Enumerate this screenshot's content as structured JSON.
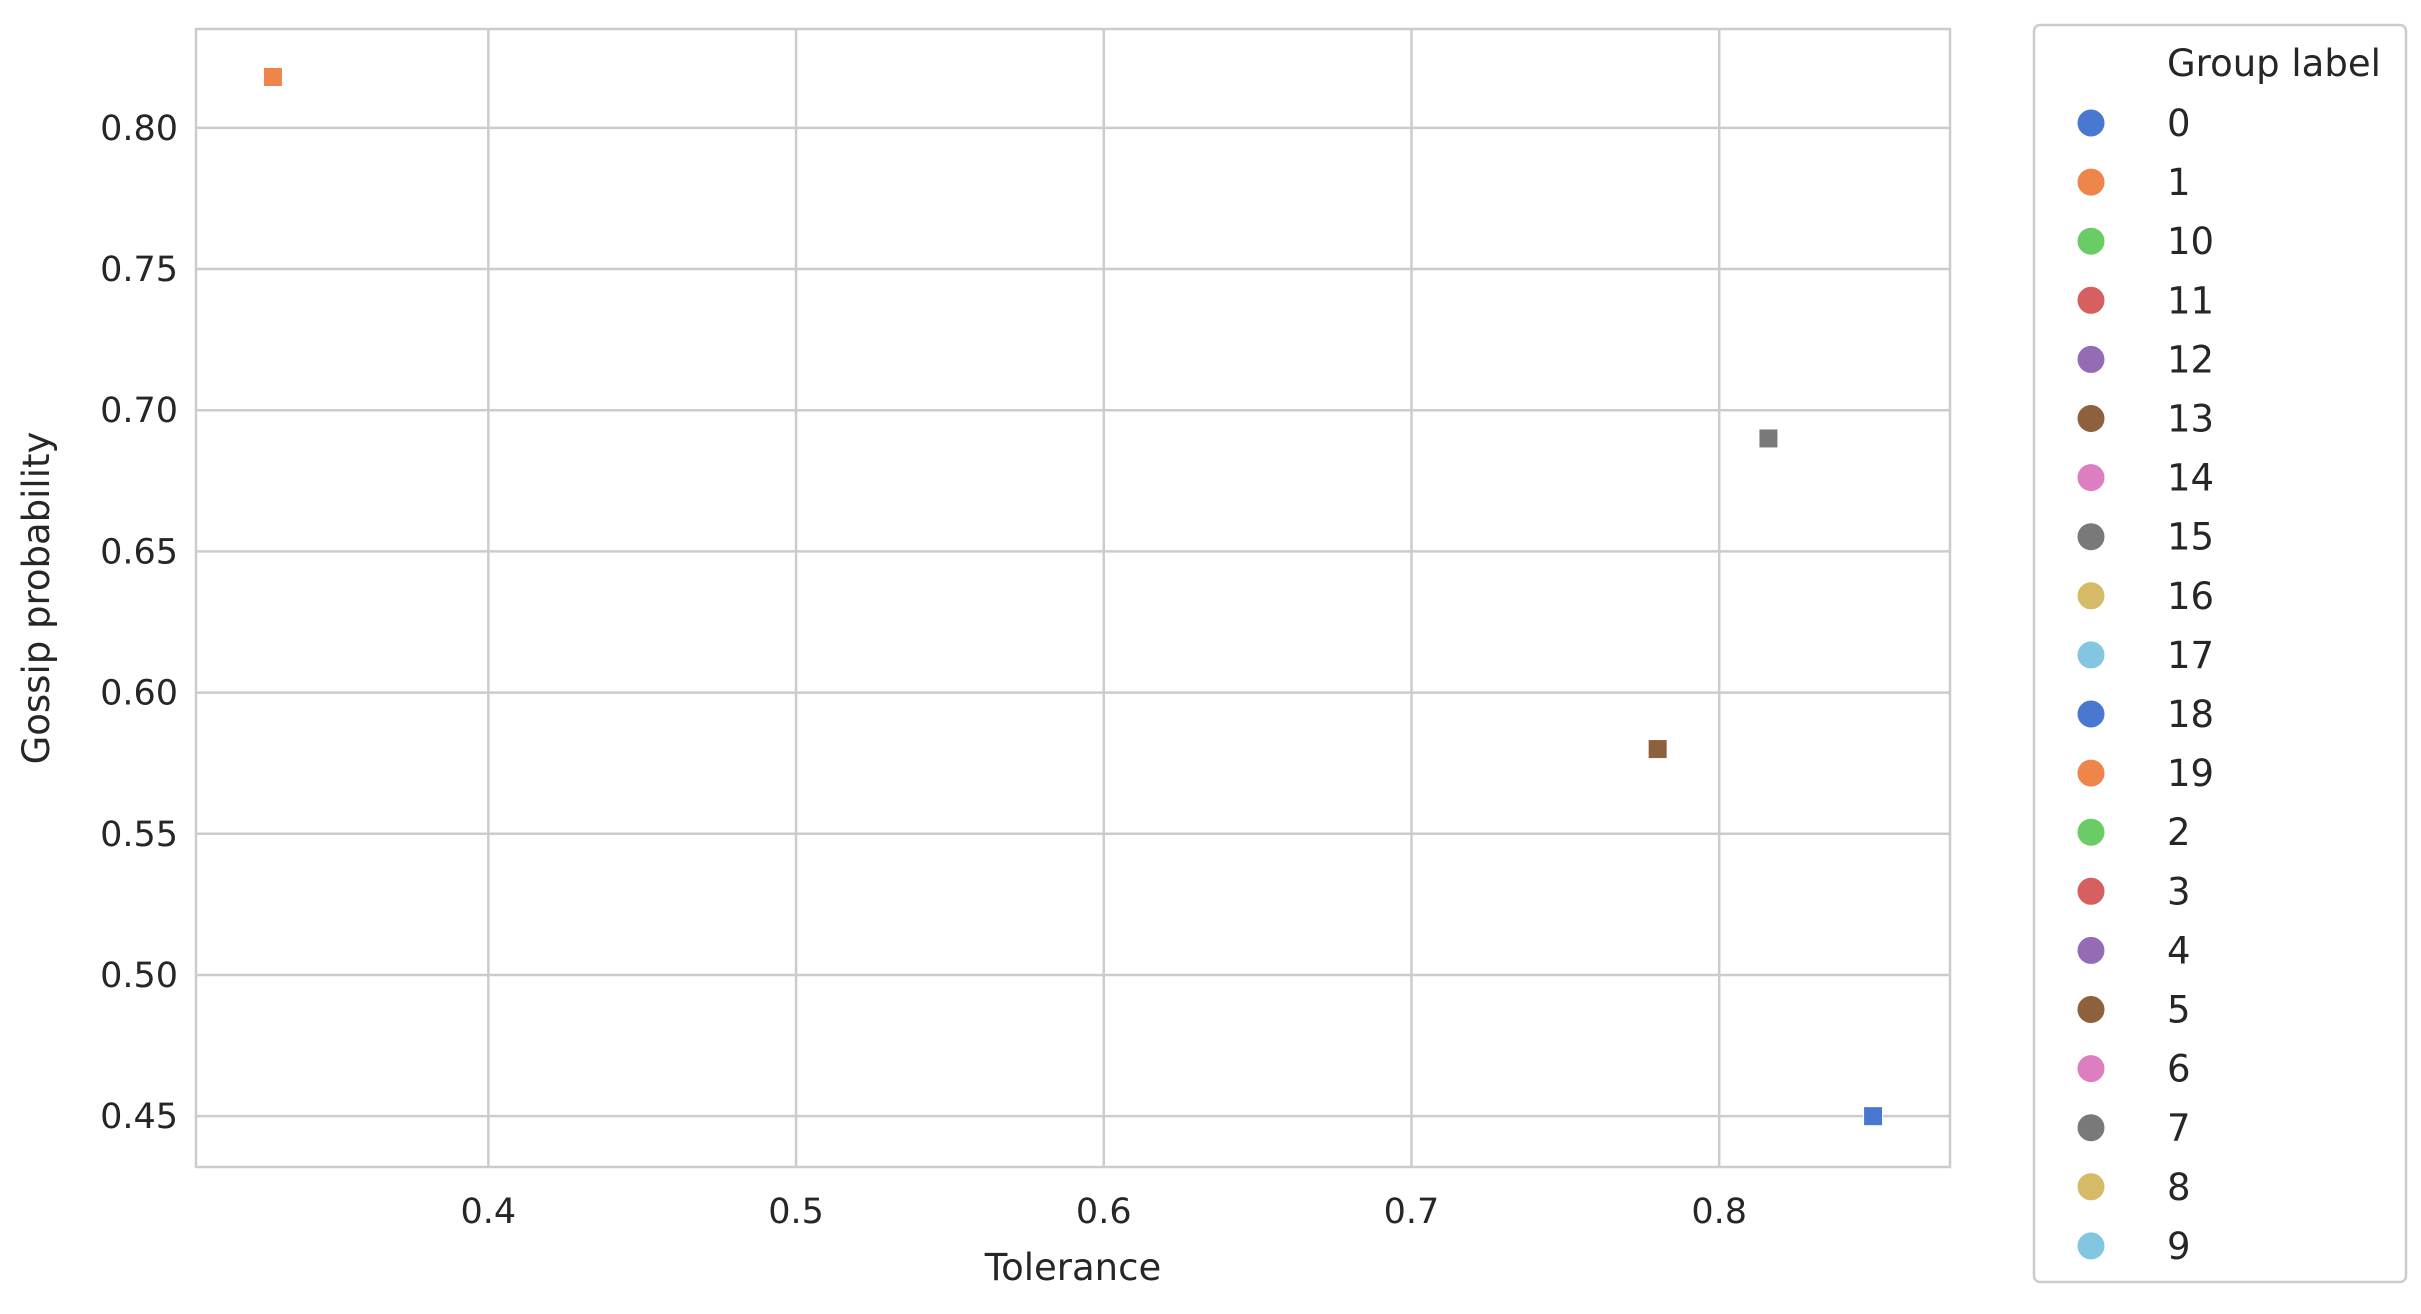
{
  "chart_data": {
    "type": "scatter",
    "xlabel": "Tolerance",
    "ylabel": "Gossip probability",
    "xlim": [
      0.305,
      0.875
    ],
    "ylim": [
      0.432,
      0.835
    ],
    "xticks": [
      0.4,
      0.5,
      0.6,
      0.7,
      0.8
    ],
    "xtick_labels": [
      "0.4",
      "0.5",
      "0.6",
      "0.7",
      "0.8"
    ],
    "yticks": [
      0.45,
      0.5,
      0.55,
      0.6,
      0.65,
      0.7,
      0.75,
      0.8
    ],
    "ytick_labels": [
      "0.45",
      "0.50",
      "0.55",
      "0.60",
      "0.65",
      "0.70",
      "0.75",
      "0.80"
    ],
    "grid": true,
    "marker": "square",
    "legend": {
      "title": "Group label",
      "placement": "outside-right",
      "entries": [
        {
          "label": "0",
          "color": "#4878d0"
        },
        {
          "label": "1",
          "color": "#ee854a"
        },
        {
          "label": "10",
          "color": "#6acc64"
        },
        {
          "label": "11",
          "color": "#d65f5f"
        },
        {
          "label": "12",
          "color": "#956cb4"
        },
        {
          "label": "13",
          "color": "#8c613c"
        },
        {
          "label": "14",
          "color": "#dc7ec0"
        },
        {
          "label": "15",
          "color": "#797979"
        },
        {
          "label": "16",
          "color": "#d5bb67"
        },
        {
          "label": "17",
          "color": "#82c6e2"
        },
        {
          "label": "18",
          "color": "#4878d0"
        },
        {
          "label": "19",
          "color": "#ee854a"
        },
        {
          "label": "2",
          "color": "#6acc64"
        },
        {
          "label": "3",
          "color": "#d65f5f"
        },
        {
          "label": "4",
          "color": "#956cb4"
        },
        {
          "label": "5",
          "color": "#8c613c"
        },
        {
          "label": "6",
          "color": "#dc7ec0"
        },
        {
          "label": "7",
          "color": "#797979"
        },
        {
          "label": "8",
          "color": "#d5bb67"
        },
        {
          "label": "9",
          "color": "#82c6e2"
        }
      ]
    },
    "points": [
      {
        "x": 0.33,
        "y": 0.818,
        "color": "#ee854a"
      },
      {
        "x": 0.816,
        "y": 0.69,
        "color": "#797979"
      },
      {
        "x": 0.78,
        "y": 0.58,
        "color": "#8c613c"
      },
      {
        "x": 0.85,
        "y": 0.45,
        "color": "#4878d0"
      }
    ]
  }
}
